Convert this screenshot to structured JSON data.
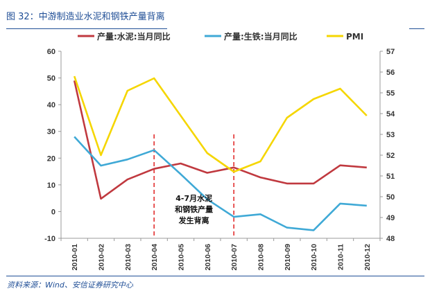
{
  "figure_title": "图 32：中游制造业水泥和钢铁产量背离",
  "source_note": "资料来源：Wind、安信证券研究中心",
  "colors": {
    "cement": "#c0393f",
    "steel": "#3fa9d6",
    "pmi": "#f5d600",
    "annotation": "#e02020",
    "axis": "#999999",
    "rule": "#1f4e96"
  },
  "chart_data": {
    "type": "line",
    "categories": [
      "2010-01",
      "2010-02",
      "2010-03",
      "2010-04",
      "2010-05",
      "2010-06",
      "2010-07",
      "2010-08",
      "2010-09",
      "2010-10",
      "2010-11",
      "2010-12"
    ],
    "series": [
      {
        "name": "产量:水泥:当月同比",
        "axis": "left",
        "color": "#c0393f",
        "values": [
          49,
          4.8,
          12,
          16,
          18,
          14.5,
          16.5,
          12.8,
          10.5,
          10.5,
          17.3,
          16.5
        ]
      },
      {
        "name": "产量:生铁:当月同比",
        "axis": "left",
        "color": "#3fa9d6",
        "values": [
          28,
          17.2,
          19.5,
          23,
          14,
          4.6,
          -2,
          -1,
          -6,
          -7,
          3,
          2.2
        ]
      },
      {
        "name": "PMI",
        "axis": "right",
        "color": "#f5d600",
        "values": [
          55.8,
          52,
          55.1,
          55.7,
          53.9,
          52.1,
          51.2,
          51.7,
          53.8,
          54.7,
          55.2,
          53.9
        ]
      }
    ],
    "y_left": {
      "min": -10,
      "max": 60,
      "ticks": [
        "-10",
        "0",
        "10",
        "20",
        "30",
        "40",
        "50",
        "60"
      ]
    },
    "y_right": {
      "min": 48,
      "max": 57,
      "ticks": [
        "48",
        "49",
        "50",
        "51",
        "52",
        "53",
        "54",
        "55",
        "56",
        "57"
      ]
    },
    "vlines": [
      {
        "at": "2010-04",
        "style": "dashed"
      },
      {
        "at": "2010-07",
        "style": "dashed"
      }
    ],
    "annotation": {
      "lines": [
        "4-7月水泥",
        "和钢铁产量",
        "发生背离"
      ]
    },
    "legend": {
      "position": "top"
    }
  }
}
